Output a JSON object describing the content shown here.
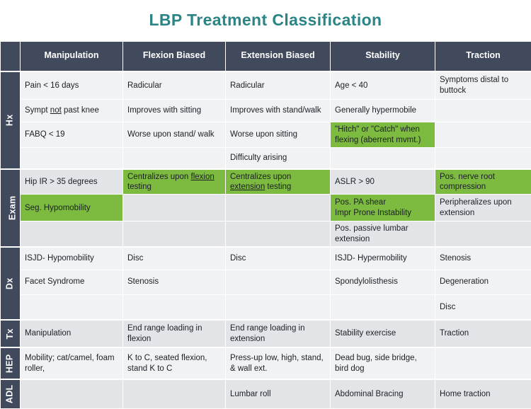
{
  "title": "LBP Treatment Classification",
  "colors": {
    "title_teal": "#2b8486",
    "header_navy": "#404a5c",
    "highlight_green": "#7cba40"
  },
  "table": {
    "columns": [
      "Manipulation",
      "Flexion Biased",
      "Extension Biased",
      "Stability",
      "Traction"
    ],
    "sections": [
      {
        "label": "Hx",
        "rows": [
          [
            {
              "text": "Pain < 16 days"
            },
            {
              "text": "Radicular"
            },
            {
              "text": "Radicular"
            },
            {
              "text": "Age < 40"
            },
            {
              "text": "Symptoms distal to buttock"
            }
          ],
          [
            {
              "segments": [
                {
                  "t": "Sympt "
                },
                {
                  "t": "not",
                  "u": true
                },
                {
                  "t": " past knee"
                }
              ]
            },
            {
              "text": "Improves with sitting"
            },
            {
              "text": "Improves with stand/walk"
            },
            {
              "text": "Generally hypermobile"
            },
            {
              "text": ""
            }
          ],
          [
            {
              "text": "FABQ < 19"
            },
            {
              "text": "Worse upon stand/ walk"
            },
            {
              "text": "Worse upon sitting"
            },
            {
              "text": "\"Hitch\" or \"Catch\" when flexing (aberrent mvmt.)",
              "green": true
            },
            {
              "text": ""
            }
          ],
          [
            {
              "text": ""
            },
            {
              "text": ""
            },
            {
              "text": "Difficulty arising"
            },
            {
              "text": ""
            },
            {
              "text": ""
            }
          ]
        ]
      },
      {
        "label": "Exam",
        "rows": [
          [
            {
              "text": "Hip IR > 35 degrees"
            },
            {
              "segments": [
                {
                  "t": "Centralizes upon "
                },
                {
                  "t": "flexion",
                  "u": true
                },
                {
                  "t": " testing"
                }
              ],
              "green": true
            },
            {
              "segments": [
                {
                  "t": "Centralizes upon "
                },
                {
                  "t": "extension",
                  "u": true
                },
                {
                  "t": " testing"
                }
              ],
              "green": true
            },
            {
              "text": "ASLR > 90"
            },
            {
              "text": "Pos. nerve root compression",
              "green": true
            }
          ],
          [
            {
              "text": "Seg. Hypomobility",
              "green": true
            },
            {
              "text": ""
            },
            {
              "text": ""
            },
            {
              "lines": [
                "Pos. PA shear",
                "Impr Prone Instability"
              ],
              "green": true
            },
            {
              "text": "Peripheralizes upon extension"
            }
          ],
          [
            {
              "text": ""
            },
            {
              "text": ""
            },
            {
              "text": ""
            },
            {
              "text": "Pos. passive lumbar extension"
            },
            {
              "text": ""
            }
          ]
        ]
      },
      {
        "label": "Dx",
        "rows": [
          [
            {
              "text": "ISJD- Hypomobility"
            },
            {
              "text": "Disc"
            },
            {
              "text": "Disc"
            },
            {
              "text": "ISJD- Hypermobility"
            },
            {
              "text": "Stenosis"
            }
          ],
          [
            {
              "text": "Facet Syndrome"
            },
            {
              "text": "Stenosis"
            },
            {
              "text": ""
            },
            {
              "text": "Spondylolisthesis"
            },
            {
              "text": "Degeneration"
            }
          ],
          [
            {
              "text": ""
            },
            {
              "text": ""
            },
            {
              "text": ""
            },
            {
              "text": ""
            },
            {
              "text": "Disc"
            }
          ]
        ]
      },
      {
        "label": "Tx",
        "rows": [
          [
            {
              "text": "Manipulation"
            },
            {
              "text": "End range loading in flexion"
            },
            {
              "text": "End range loading in extension"
            },
            {
              "text": "Stability exercise"
            },
            {
              "text": "Traction"
            }
          ]
        ]
      },
      {
        "label": "HEP",
        "rows": [
          [
            {
              "text": "Mobility; cat/camel, foam roller,"
            },
            {
              "text": "K to C, seated flexion, stand K to C"
            },
            {
              "text": "Press-up low, high, stand, & wall ext."
            },
            {
              "text": "Dead bug, side bridge, bird dog"
            },
            {
              "text": ""
            }
          ]
        ]
      },
      {
        "label": "ADL",
        "rows": [
          [
            {
              "text": ""
            },
            {
              "text": ""
            },
            {
              "text": "Lumbar roll"
            },
            {
              "text": "Abdominal Bracing"
            },
            {
              "text": "Home traction"
            }
          ]
        ]
      }
    ]
  }
}
